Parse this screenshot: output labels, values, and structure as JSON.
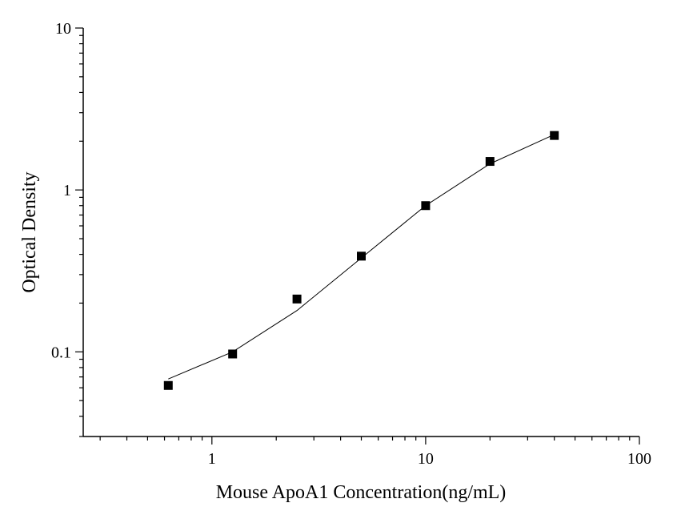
{
  "chart_data": {
    "type": "scatter",
    "title": "",
    "xlabel": "Mouse ApoA1  Concentration(ng/mL)",
    "ylabel": "Optical Density",
    "xscale": "log",
    "yscale": "log",
    "xlim": [
      0.25,
      100
    ],
    "ylim": [
      0.03,
      10
    ],
    "x_ticks": [
      {
        "value": 1,
        "label": "1"
      },
      {
        "value": 10,
        "label": "10"
      },
      {
        "value": 100,
        "label": "100"
      }
    ],
    "y_ticks": [
      {
        "value": 0.1,
        "label": "0.1"
      },
      {
        "value": 1,
        "label": "1"
      },
      {
        "value": 10,
        "label": "10"
      }
    ],
    "grid": false,
    "legend": "none",
    "series": [
      {
        "marker": "square",
        "color": "#000000",
        "x": [
          0.625,
          1.25,
          2.5,
          5,
          10,
          20,
          40
        ],
        "y": [
          0.062,
          0.097,
          0.212,
          0.39,
          0.8,
          1.5,
          2.17
        ]
      }
    ],
    "fit_curve": {
      "color": "#000000",
      "x": [
        0.625,
        1.25,
        2.5,
        5,
        10,
        20,
        40
      ],
      "y": [
        0.068,
        0.1,
        0.18,
        0.38,
        0.8,
        1.45,
        2.2
      ]
    }
  }
}
